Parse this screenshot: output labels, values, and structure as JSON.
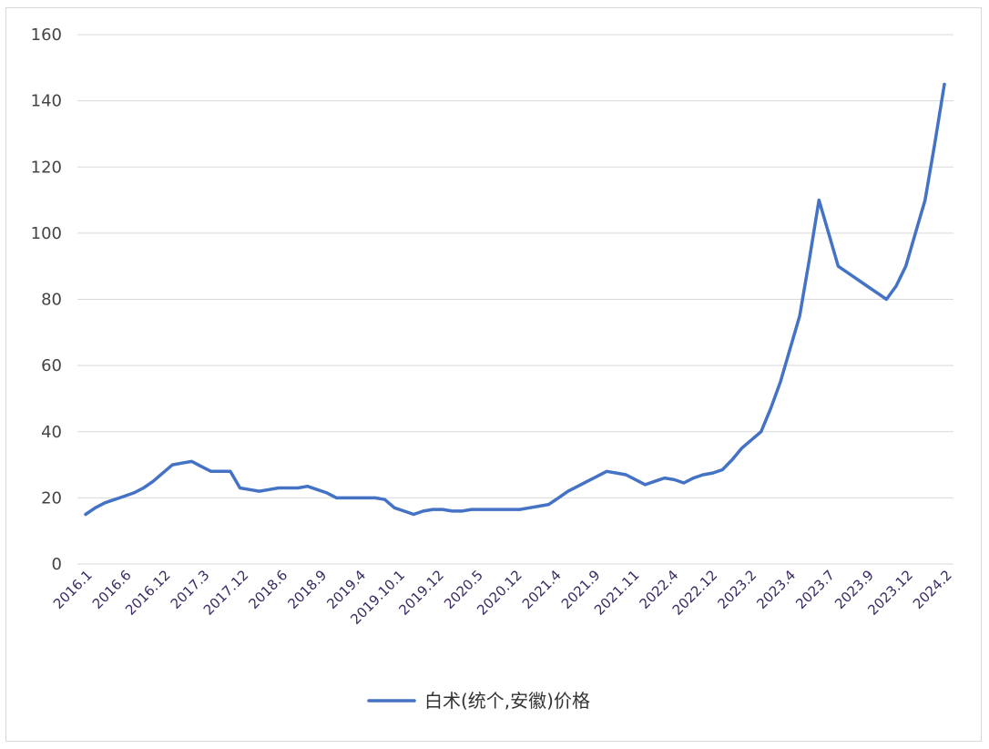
{
  "chart_data": {
    "type": "line",
    "title": "",
    "xlabel": "",
    "ylabel": "",
    "ylim": [
      0,
      160
    ],
    "yticks": [
      0,
      20,
      40,
      60,
      80,
      100,
      120,
      140,
      160
    ],
    "grid": true,
    "legend_position": "bottom",
    "x_tick_labels": [
      "2016.1",
      "2016.6",
      "2016.12",
      "2017.3",
      "2017.12",
      "2018.6",
      "2018.9",
      "2019.4",
      "2019.10.1",
      "2019.12",
      "2020.5",
      "2020.12",
      "2021.4",
      "2021.9",
      "2021.11",
      "2022.4",
      "2022.12",
      "2023.2",
      "2023.4",
      "2023.7",
      "2023.9",
      "2023.12",
      "2024.2"
    ],
    "series": [
      {
        "name": "白术(统个,安徽)价格",
        "color": "#4472c4",
        "values": [
          15,
          17,
          18.5,
          19.5,
          20.5,
          21.5,
          23,
          25,
          27.5,
          30,
          30.5,
          31,
          29.5,
          28,
          28,
          28,
          23,
          22.5,
          22,
          22.5,
          23,
          23,
          23,
          23.5,
          22.5,
          21.5,
          20,
          20,
          20,
          20,
          20,
          19.5,
          17,
          16,
          15,
          16,
          16.5,
          16.5,
          16,
          16,
          16.5,
          16.5,
          16.5,
          16.5,
          16.5,
          16.5,
          17,
          17.5,
          18,
          20,
          22,
          23.5,
          25,
          26.5,
          28,
          27.5,
          27,
          25.5,
          24,
          25,
          26,
          25.5,
          24.5,
          26,
          27,
          27.5,
          28.5,
          31.5,
          35,
          37.5,
          40,
          47,
          55,
          65,
          75,
          92,
          110,
          100,
          90,
          88,
          86,
          84,
          82,
          80,
          84,
          90,
          100,
          110,
          127,
          145
        ]
      }
    ]
  }
}
